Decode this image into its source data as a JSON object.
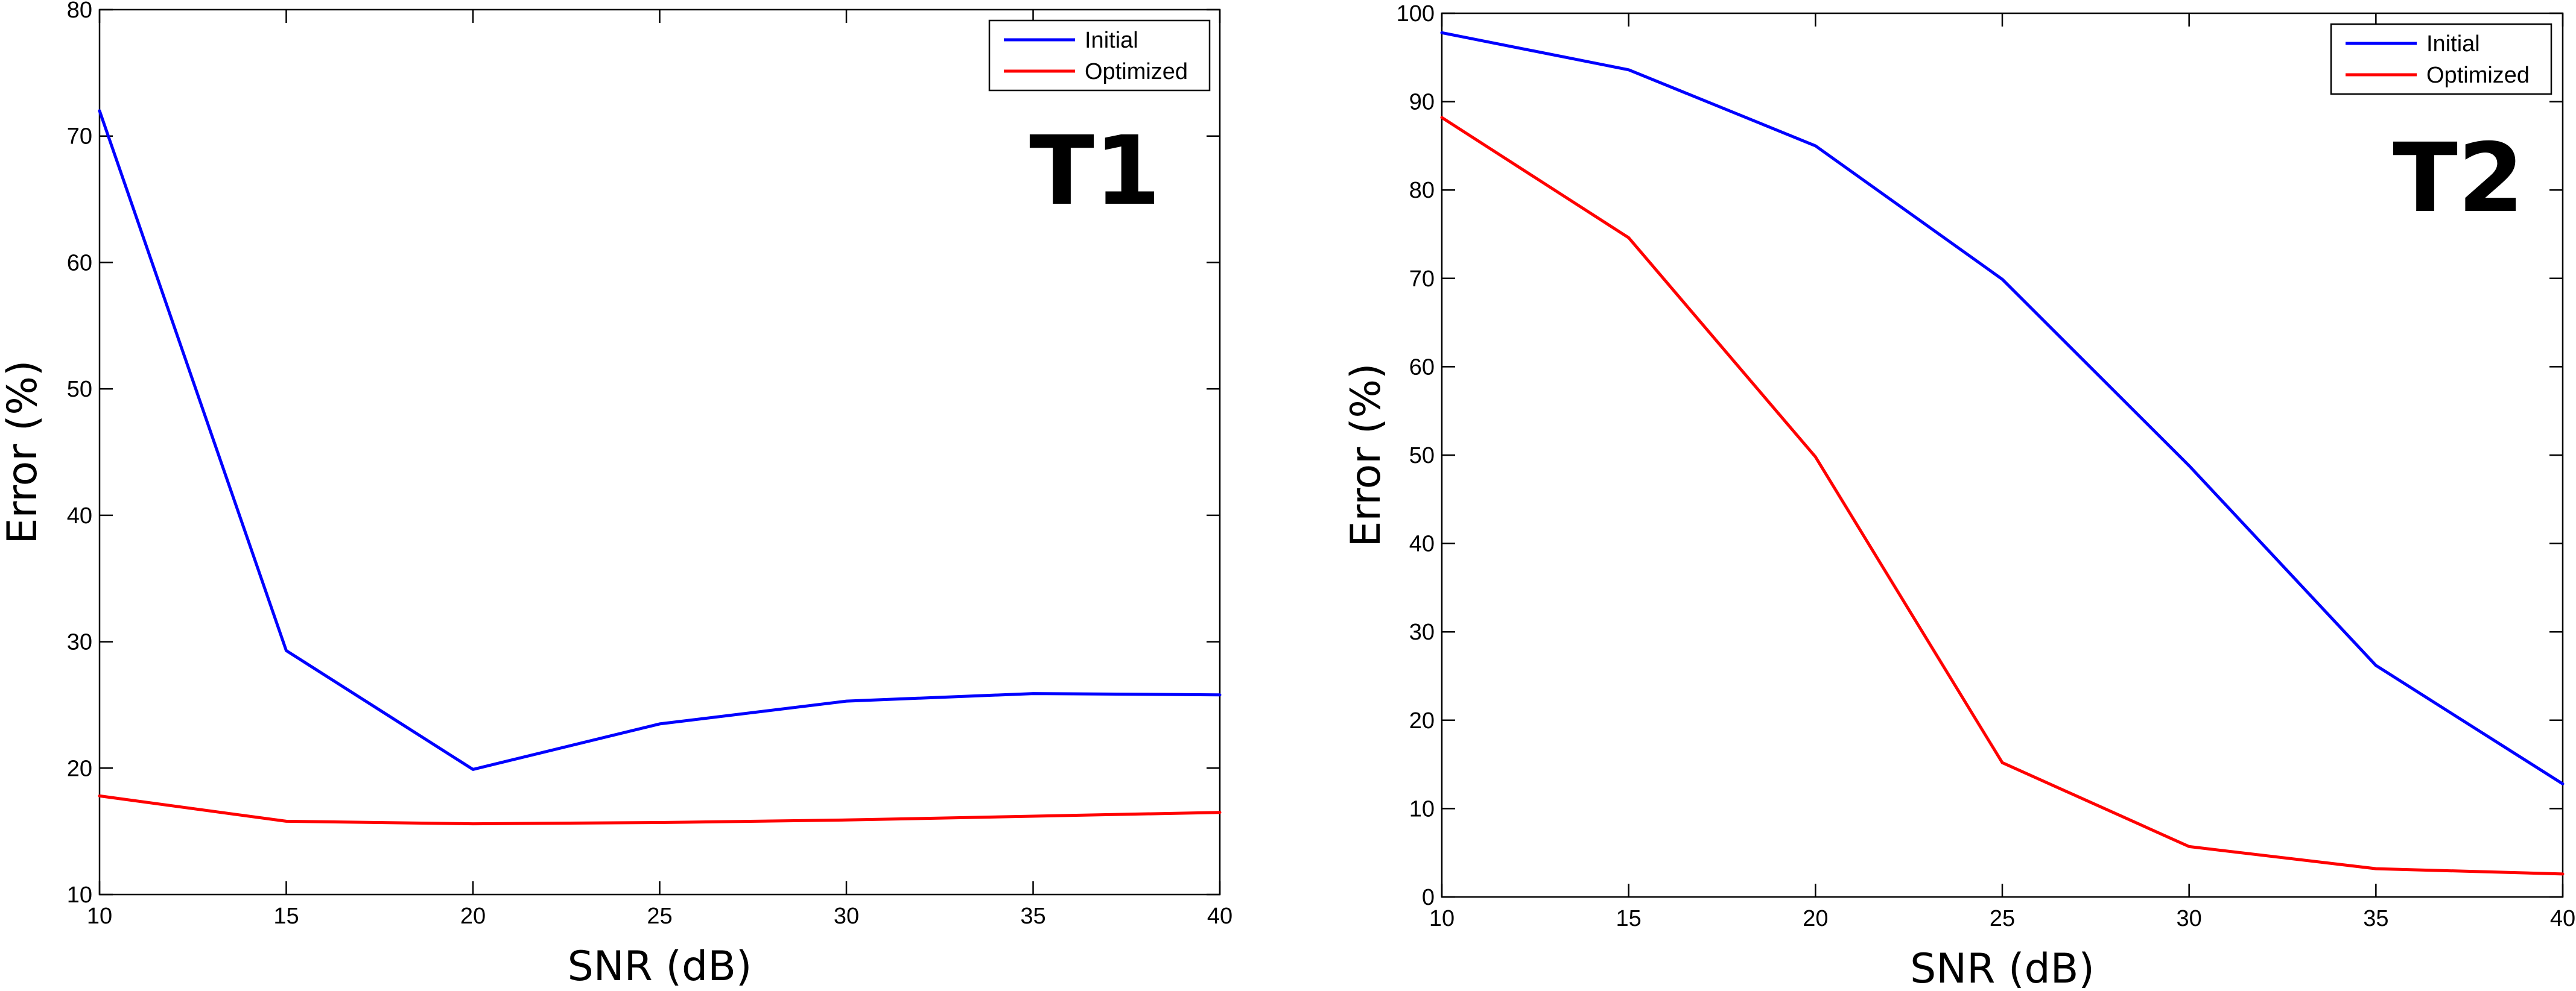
{
  "chart_data": [
    {
      "type": "line",
      "panel_label": "T1",
      "xlabel": "SNR (dB)",
      "ylabel": "Error (%)",
      "xlim": [
        10,
        40
      ],
      "ylim": [
        10,
        80
      ],
      "xticks": [
        10,
        15,
        20,
        25,
        30,
        35,
        40
      ],
      "yticks": [
        10,
        20,
        30,
        40,
        50,
        60,
        70,
        80
      ],
      "grid": false,
      "legend_position": "top-right",
      "x": [
        10,
        15,
        20,
        25,
        30,
        35,
        40
      ],
      "series": [
        {
          "name": "Initial",
          "color": "#0000ff",
          "values": [
            72.0,
            29.3,
            19.9,
            23.5,
            25.3,
            25.9,
            25.8
          ]
        },
        {
          "name": "Optimized",
          "color": "#ff0000",
          "values": [
            17.8,
            15.8,
            15.6,
            15.7,
            15.9,
            16.2,
            16.5
          ]
        }
      ]
    },
    {
      "type": "line",
      "panel_label": "T2",
      "xlabel": "SNR (dB)",
      "ylabel": "Error (%)",
      "xlim": [
        10,
        40
      ],
      "ylim": [
        0,
        100
      ],
      "xticks": [
        10,
        15,
        20,
        25,
        30,
        35,
        40
      ],
      "yticks": [
        0,
        10,
        20,
        30,
        40,
        50,
        60,
        70,
        80,
        90,
        100
      ],
      "grid": false,
      "legend_position": "top-right",
      "x": [
        10,
        15,
        20,
        25,
        30,
        35,
        40
      ],
      "series": [
        {
          "name": "Initial",
          "color": "#0000ff",
          "values": [
            97.8,
            93.6,
            85.0,
            69.9,
            48.8,
            26.2,
            12.8
          ]
        },
        {
          "name": "Optimized",
          "color": "#ff0000",
          "values": [
            88.2,
            74.6,
            49.8,
            15.2,
            5.7,
            3.2,
            2.6
          ]
        }
      ]
    }
  ]
}
